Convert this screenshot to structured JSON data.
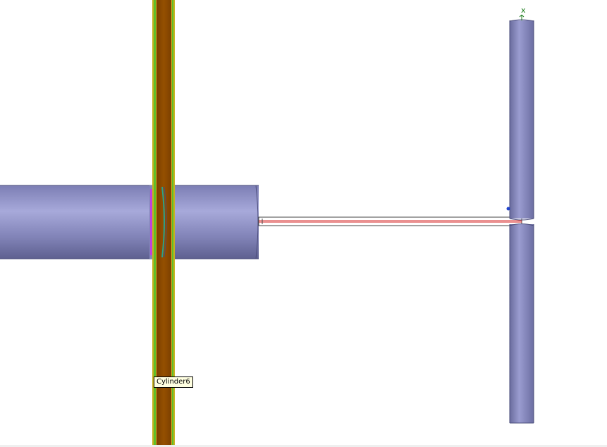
{
  "tooltip": {
    "label": "Cylinder6"
  },
  "axis": {
    "label": "x",
    "color": "#1a7a1a"
  },
  "colors": {
    "background": "#ffffff",
    "cylinder_fill": "#8a8cc0",
    "cylinder_edge": "#4a4c7a",
    "disk_fill": "#8b4a00",
    "disk_edge_green": "#5cbf2a",
    "disk_edge_yellow": "#c7b21f",
    "wire_outer": "#444444",
    "wire_inner": "#d62020",
    "ring_magenta": "#c040e0",
    "ring_teal": "#2aa08a",
    "axis_dot": "#2244cc"
  },
  "icons": {
    "axis_marker": "axis-triad-icon"
  }
}
